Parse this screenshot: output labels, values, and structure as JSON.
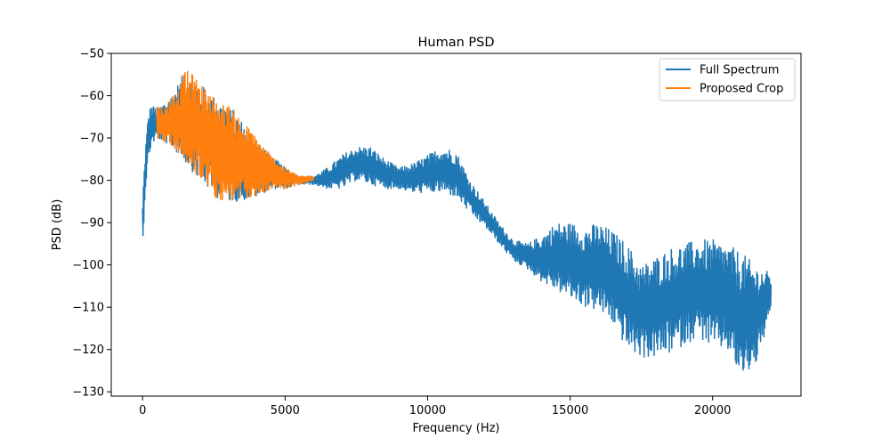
{
  "chart_data": {
    "type": "line",
    "title": "Human PSD",
    "xlabel": "Frequency (Hz)",
    "ylabel": "PSD (dB)",
    "xlim": [
      -1100,
      23100
    ],
    "ylim": [
      -131,
      -50
    ],
    "x_ticks": [
      0,
      5000,
      10000,
      15000,
      20000
    ],
    "x_tick_labels": [
      "0",
      "5000",
      "10000",
      "15000",
      "20000"
    ],
    "y_ticks": [
      -50,
      -60,
      -70,
      -80,
      -90,
      -100,
      -110,
      -120,
      -130
    ],
    "y_tick_labels": [
      "−50",
      "−60",
      "−70",
      "−80",
      "−90",
      "−100",
      "−110",
      "−120",
      "−130"
    ],
    "grid": false,
    "legend_position": "top-right",
    "series": [
      {
        "name": "Full Spectrum",
        "color": "#1f77b4",
        "x_range": [
          0,
          22050
        ],
        "envelope_x": [
          0,
          30,
          100,
          200,
          300,
          500,
          1000,
          1500,
          2000,
          2500,
          3000,
          3500,
          4000,
          4500,
          5000,
          5500,
          6000,
          6500,
          7000,
          7500,
          8000,
          8500,
          9000,
          9500,
          10000,
          10500,
          11000,
          11500,
          12000,
          12500,
          13000,
          13500,
          14000,
          14500,
          15000,
          15500,
          16000,
          16500,
          17000,
          17500,
          18000,
          18500,
          19000,
          19500,
          20000,
          20500,
          21000,
          21500,
          22050
        ],
        "upper": [
          -85,
          -80,
          -72,
          -64,
          -62,
          -63,
          -60,
          -54,
          -57,
          -60,
          -62,
          -66,
          -70,
          -74,
          -77,
          -79,
          -79,
          -77,
          -74,
          -72,
          -72,
          -75,
          -77,
          -76,
          -74,
          -72,
          -73,
          -80,
          -85,
          -90,
          -94,
          -95,
          -93,
          -90,
          -90,
          -91,
          -90,
          -92,
          -95,
          -100,
          -98,
          -96,
          -95,
          -94,
          -94,
          -95,
          -97,
          -100,
          -102
        ],
        "lower": [
          -100,
          -92,
          -82,
          -76,
          -72,
          -70,
          -72,
          -76,
          -80,
          -84,
          -85,
          -85,
          -84,
          -82,
          -82,
          -81,
          -81,
          -82,
          -82,
          -80,
          -81,
          -82,
          -82,
          -83,
          -83,
          -83,
          -84,
          -88,
          -91,
          -95,
          -99,
          -101,
          -104,
          -106,
          -108,
          -110,
          -111,
          -114,
          -120,
          -122,
          -122,
          -121,
          -119,
          -117,
          -120,
          -120,
          -127,
          -124,
          -112
        ]
      },
      {
        "name": "Proposed Crop",
        "color": "#ff7f0e",
        "x_range": [
          500,
          6000
        ],
        "envelope_x": [
          500,
          800,
          1000,
          1300,
          1500,
          1800,
          2000,
          2300,
          2500,
          2800,
          3000,
          3300,
          3500,
          3800,
          4000,
          4300,
          4500,
          5000,
          5500,
          6000
        ],
        "upper": [
          -62,
          -63,
          -60,
          -58,
          -54,
          -55,
          -57,
          -59,
          -60,
          -62,
          -62,
          -64,
          -66,
          -68,
          -70,
          -72,
          -74,
          -77,
          -79,
          -79
        ],
        "lower": [
          -70,
          -71,
          -72,
          -74,
          -76,
          -78,
          -80,
          -82,
          -84,
          -85,
          -85,
          -85,
          -85,
          -84,
          -84,
          -83,
          -82,
          -82,
          -81,
          -80
        ]
      }
    ]
  }
}
